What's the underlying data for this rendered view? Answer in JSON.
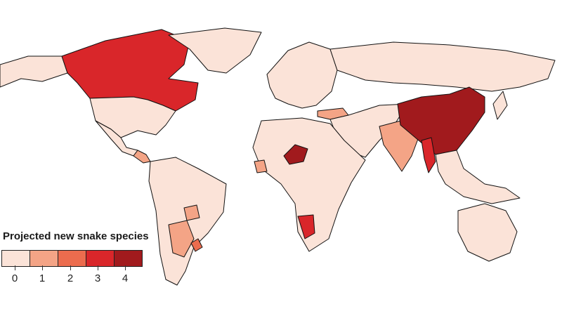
{
  "legend": {
    "title": "Projected new snake species",
    "bins": [
      {
        "label": "0",
        "color": "#fbe3d8"
      },
      {
        "label": "1",
        "color": "#f4a486"
      },
      {
        "label": "2",
        "color": "#ec6c4e"
      },
      {
        "label": "3",
        "color": "#d9262a"
      },
      {
        "label": "4",
        "color": "#a11a1d"
      }
    ]
  },
  "ocean_color": "#ffffff",
  "regions": [
    {
      "name": "canada",
      "value": 3
    },
    {
      "name": "alaska",
      "value": 0
    },
    {
      "name": "greenland",
      "value": 0
    },
    {
      "name": "usa",
      "value": 0
    },
    {
      "name": "mexico",
      "value": 0
    },
    {
      "name": "central-america",
      "value": 1
    },
    {
      "name": "south-america",
      "value": 0
    },
    {
      "name": "paraguay",
      "value": 1
    },
    {
      "name": "argentina-north",
      "value": 1
    },
    {
      "name": "uruguay",
      "value": 2
    },
    {
      "name": "europe",
      "value": 0
    },
    {
      "name": "turkey",
      "value": 1
    },
    {
      "name": "russia",
      "value": 0
    },
    {
      "name": "africa",
      "value": 0
    },
    {
      "name": "niger",
      "value": 4
    },
    {
      "name": "namibia",
      "value": 3
    },
    {
      "name": "west-africa-coast",
      "value": 1
    },
    {
      "name": "middle-east",
      "value": 0
    },
    {
      "name": "india",
      "value": 1
    },
    {
      "name": "china",
      "value": 4
    },
    {
      "name": "myanmar",
      "value": 3
    },
    {
      "name": "southeast-asia",
      "value": 0
    },
    {
      "name": "australia",
      "value": 0
    },
    {
      "name": "japan",
      "value": 0
    }
  ]
}
